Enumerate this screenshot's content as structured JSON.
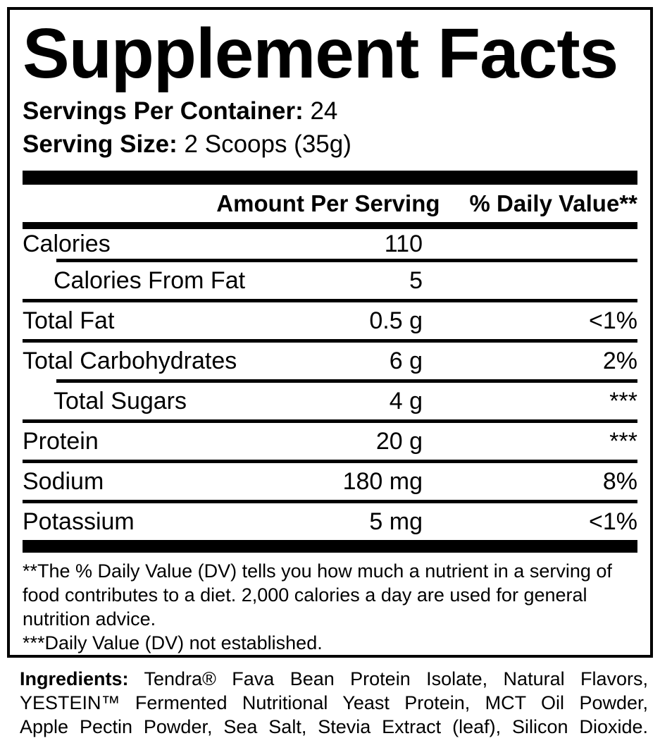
{
  "panel": {
    "title": "Supplement Facts",
    "servings_per_container_label": "Servings Per Container:",
    "servings_per_container_value": "24",
    "serving_size_label": "Serving Size:",
    "serving_size_value": "2 Scoops (35g)"
  },
  "table": {
    "amount_header": "Amount Per Serving",
    "dv_header": "% Daily Value**",
    "rows": [
      {
        "label": "Calories",
        "amount": "110",
        "dv": ""
      },
      {
        "label": "Calories From Fat",
        "amount": "5",
        "dv": ""
      },
      {
        "label": "Total Fat",
        "amount": "0.5 g",
        "dv": "<1%"
      },
      {
        "label": "Total Carbohydrates",
        "amount": "6 g",
        "dv": "2%"
      },
      {
        "label": "Total Sugars",
        "amount": "4 g",
        "dv": "***"
      },
      {
        "label": "Protein",
        "amount": "20 g",
        "dv": "***"
      },
      {
        "label": "Sodium",
        "amount": "180 mg",
        "dv": "8%"
      },
      {
        "label": "Potassium",
        "amount": "5 mg",
        "dv": "<1%"
      }
    ]
  },
  "footnotes": {
    "dv_note": "**The % Daily Value (DV) tells you how much a nutrient in a serving of\nfood contributes to a diet. 2,000 calories a day are used for general\nnutrition advice.",
    "nd_note": "***Daily Value (DV) not established."
  },
  "ingredients": {
    "label": "Ingredients:",
    "text": "Tendra® Fava Bean Protein Isolate, Natural Flavors,\nYESTEIN™ Fermented Nutritional Yeast Protein, MCT Oil Powder,\nApple Pectin Powder, Sea Salt, Stevia Extract (leaf), Silicon Dioxide."
  },
  "colors": {
    "ink": "#000000",
    "background": "#ffffff"
  }
}
